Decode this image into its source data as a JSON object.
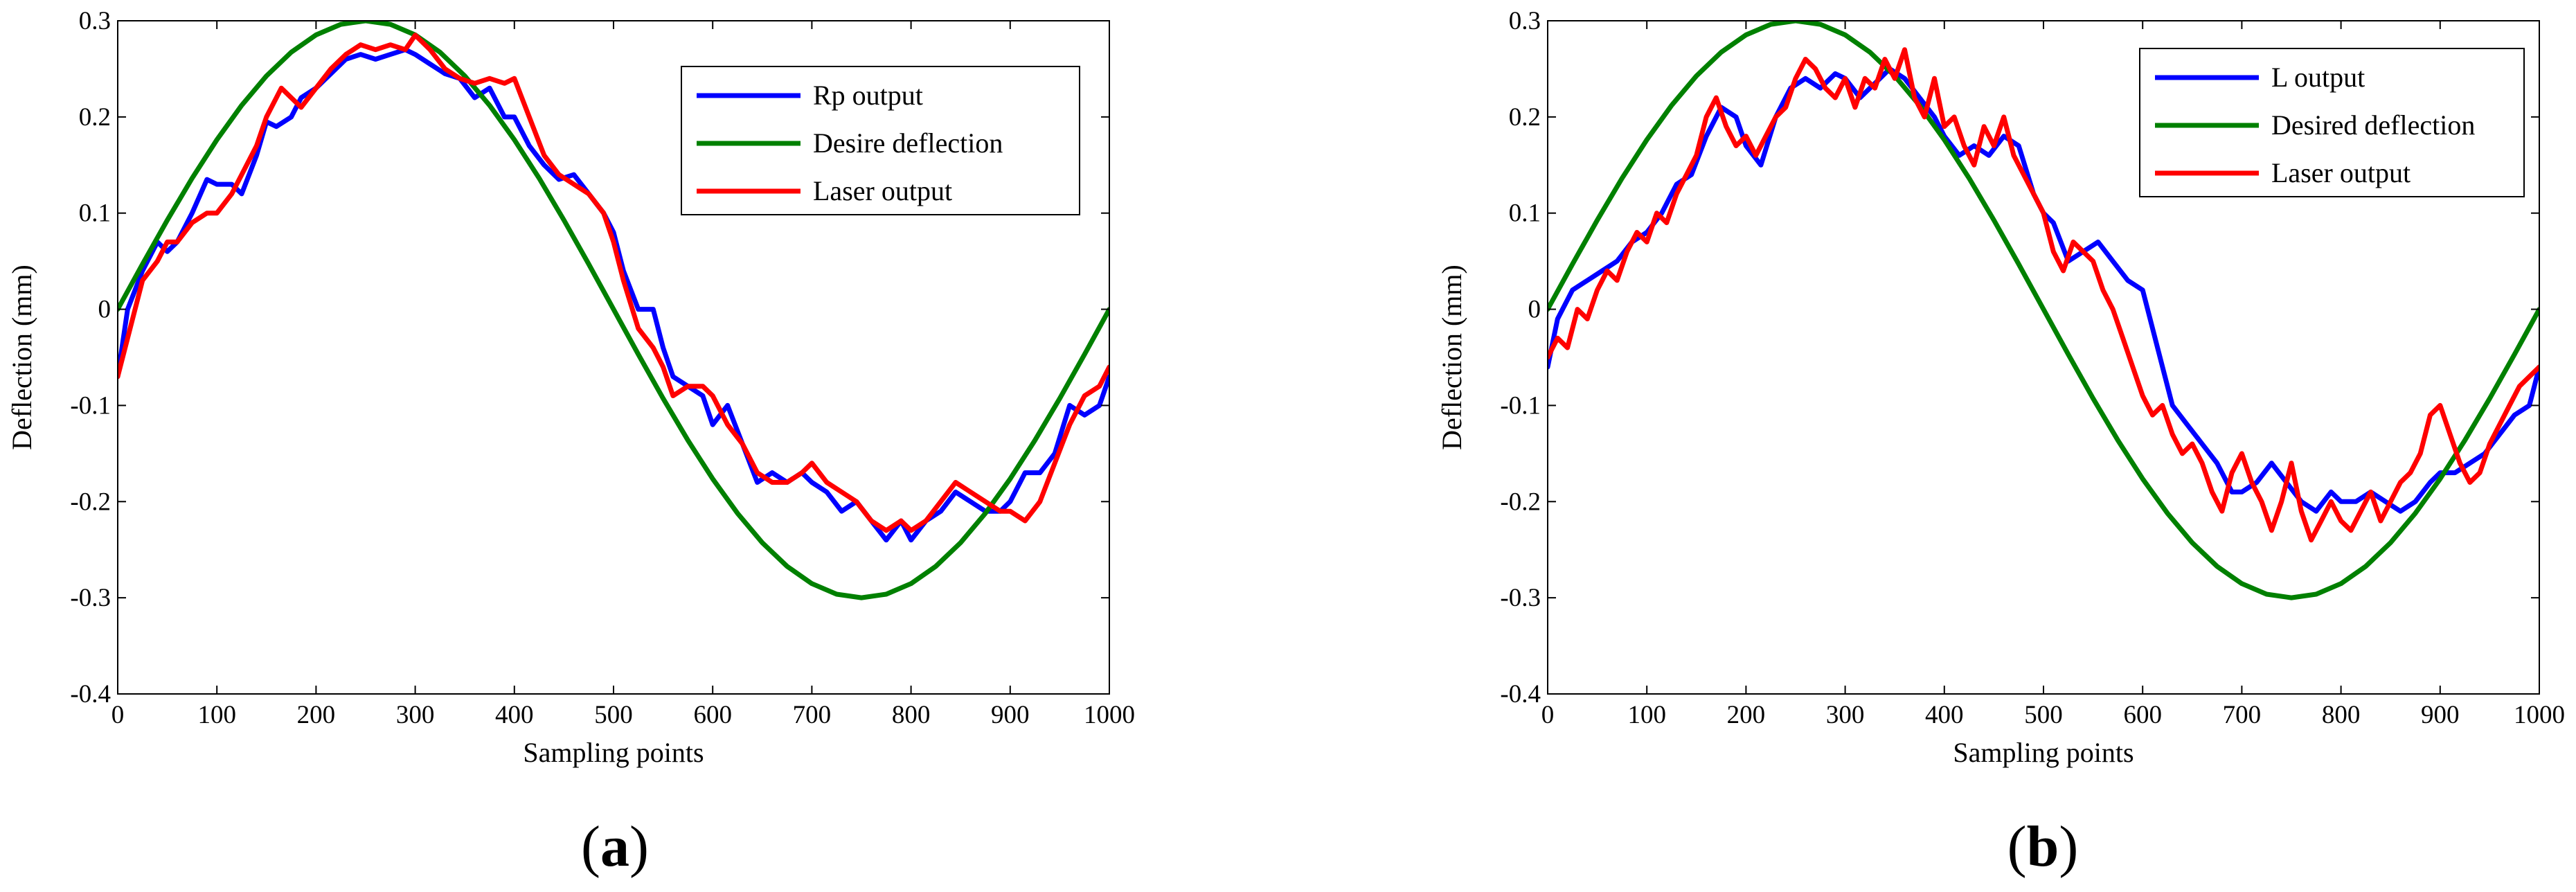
{
  "chart_data": [
    {
      "id": "a",
      "type": "line",
      "caption": {
        "open": "(",
        "letter": "a",
        "close": ")"
      },
      "title": "",
      "xlabel": "Sampling points",
      "ylabel": "Deflection (mm)",
      "xlim": [
        0,
        1000
      ],
      "ylim": [
        -0.4,
        0.3
      ],
      "xticks": [
        0,
        100,
        200,
        300,
        400,
        500,
        600,
        700,
        800,
        900,
        1000
      ],
      "yticks": [
        -0.4,
        -0.3,
        -0.2,
        -0.1,
        0,
        0.1,
        0.2,
        0.3
      ],
      "xtick_labels": [
        "0",
        "100",
        "200",
        "300",
        "400",
        "500",
        "600",
        "700",
        "800",
        "900",
        "1000"
      ],
      "ytick_labels": [
        "-0.4",
        "-0.3",
        "-0.2",
        "-0.1",
        "0",
        "0.1",
        "0.2",
        "0.3"
      ],
      "grid": false,
      "legend_position": "top-right",
      "series": [
        {
          "name": "Rp output",
          "color": "#0000ff",
          "x": [
            0,
            10,
            25,
            40,
            50,
            60,
            75,
            90,
            100,
            115,
            125,
            140,
            150,
            160,
            175,
            185,
            200,
            215,
            230,
            245,
            260,
            275,
            290,
            300,
            315,
            330,
            345,
            360,
            375,
            390,
            400,
            415,
            430,
            445,
            460,
            475,
            490,
            500,
            510,
            525,
            540,
            550,
            560,
            575,
            590,
            600,
            615,
            630,
            645,
            660,
            675,
            690,
            700,
            715,
            730,
            745,
            760,
            775,
            790,
            800,
            815,
            830,
            845,
            860,
            875,
            890,
            900,
            915,
            930,
            945,
            960,
            975,
            990,
            1000
          ],
          "values": [
            -0.07,
            0.0,
            0.04,
            0.07,
            0.06,
            0.07,
            0.1,
            0.135,
            0.13,
            0.13,
            0.12,
            0.16,
            0.195,
            0.19,
            0.2,
            0.22,
            0.23,
            0.245,
            0.26,
            0.265,
            0.26,
            0.265,
            0.27,
            0.265,
            0.255,
            0.245,
            0.24,
            0.22,
            0.23,
            0.2,
            0.2,
            0.17,
            0.15,
            0.135,
            0.14,
            0.12,
            0.1,
            0.08,
            0.04,
            0.0,
            0.0,
            -0.04,
            -0.07,
            -0.08,
            -0.09,
            -0.12,
            -0.1,
            -0.14,
            -0.18,
            -0.17,
            -0.18,
            -0.17,
            -0.18,
            -0.19,
            -0.21,
            -0.2,
            -0.22,
            -0.24,
            -0.22,
            -0.24,
            -0.22,
            -0.21,
            -0.19,
            -0.2,
            -0.21,
            -0.21,
            -0.2,
            -0.17,
            -0.17,
            -0.15,
            -0.1,
            -0.11,
            -0.1,
            -0.07
          ]
        },
        {
          "name": "Desire deflection",
          "color": "#008000",
          "function": "0.3*sin(2*pi*x/1000)",
          "x": [
            0,
            25,
            50,
            75,
            100,
            125,
            150,
            175,
            200,
            225,
            250,
            275,
            300,
            325,
            350,
            375,
            400,
            425,
            450,
            475,
            500,
            525,
            550,
            575,
            600,
            625,
            650,
            675,
            700,
            725,
            750,
            775,
            800,
            825,
            850,
            875,
            900,
            925,
            950,
            975,
            1000
          ],
          "values": [
            0.0,
            0.0469,
            0.0927,
            0.1362,
            0.1763,
            0.2121,
            0.2427,
            0.2673,
            0.2853,
            0.2963,
            0.3,
            0.2963,
            0.2853,
            0.2673,
            0.2427,
            0.2121,
            0.1763,
            0.1362,
            0.0927,
            0.0469,
            0.0,
            -0.0469,
            -0.0927,
            -0.1362,
            -0.1763,
            -0.2121,
            -0.2427,
            -0.2673,
            -0.2853,
            -0.2963,
            -0.3,
            -0.2963,
            -0.2853,
            -0.2673,
            -0.2427,
            -0.2121,
            -0.1763,
            -0.1362,
            -0.0927,
            -0.0469,
            0.0
          ]
        },
        {
          "name": "Laser output",
          "color": "#ff0000",
          "x": [
            0,
            10,
            25,
            40,
            50,
            60,
            75,
            90,
            100,
            115,
            125,
            140,
            150,
            165,
            175,
            185,
            200,
            215,
            230,
            245,
            260,
            275,
            290,
            300,
            315,
            330,
            345,
            360,
            375,
            390,
            400,
            415,
            430,
            445,
            460,
            475,
            490,
            500,
            510,
            525,
            540,
            550,
            560,
            575,
            590,
            600,
            615,
            630,
            645,
            660,
            675,
            690,
            700,
            715,
            730,
            745,
            760,
            775,
            790,
            800,
            815,
            830,
            845,
            860,
            875,
            890,
            900,
            915,
            930,
            945,
            960,
            975,
            990,
            1000
          ],
          "values": [
            -0.07,
            -0.03,
            0.03,
            0.05,
            0.07,
            0.07,
            0.09,
            0.1,
            0.1,
            0.12,
            0.14,
            0.17,
            0.2,
            0.23,
            0.22,
            0.21,
            0.23,
            0.25,
            0.265,
            0.275,
            0.27,
            0.275,
            0.27,
            0.285,
            0.27,
            0.25,
            0.24,
            0.235,
            0.24,
            0.235,
            0.24,
            0.2,
            0.16,
            0.14,
            0.13,
            0.12,
            0.1,
            0.07,
            0.03,
            -0.02,
            -0.04,
            -0.06,
            -0.09,
            -0.08,
            -0.08,
            -0.09,
            -0.12,
            -0.14,
            -0.17,
            -0.18,
            -0.18,
            -0.17,
            -0.16,
            -0.18,
            -0.19,
            -0.2,
            -0.22,
            -0.23,
            -0.22,
            -0.23,
            -0.22,
            -0.2,
            -0.18,
            -0.19,
            -0.2,
            -0.21,
            -0.21,
            -0.22,
            -0.2,
            -0.16,
            -0.12,
            -0.09,
            -0.08,
            -0.06
          ]
        }
      ]
    },
    {
      "id": "b",
      "type": "line",
      "caption": {
        "open": "(",
        "letter": "b",
        "close": ")"
      },
      "title": "",
      "xlabel": "Sampling points",
      "ylabel": "Deflection (mm)",
      "xlim": [
        0,
        1000
      ],
      "ylim": [
        -0.4,
        0.3
      ],
      "xticks": [
        0,
        100,
        200,
        300,
        400,
        500,
        600,
        700,
        800,
        900,
        1000
      ],
      "yticks": [
        -0.4,
        -0.3,
        -0.2,
        -0.1,
        0,
        0.1,
        0.2,
        0.3
      ],
      "xtick_labels": [
        "0",
        "100",
        "200",
        "300",
        "400",
        "500",
        "600",
        "700",
        "800",
        "900",
        "1000"
      ],
      "ytick_labels": [
        "-0.4",
        "-0.3",
        "-0.2",
        "-0.1",
        "0",
        "0.1",
        "0.2",
        "0.3"
      ],
      "grid": false,
      "legend_position": "top-right",
      "series": [
        {
          "name": "L output",
          "color": "#0000ff",
          "x": [
            0,
            10,
            25,
            40,
            55,
            70,
            85,
            100,
            115,
            130,
            145,
            160,
            175,
            190,
            200,
            215,
            230,
            245,
            260,
            275,
            290,
            300,
            315,
            330,
            345,
            360,
            375,
            390,
            400,
            415,
            430,
            445,
            460,
            475,
            490,
            500,
            510,
            525,
            540,
            555,
            570,
            585,
            600,
            615,
            630,
            645,
            660,
            675,
            690,
            700,
            715,
            730,
            745,
            760,
            775,
            790,
            800,
            815,
            830,
            845,
            860,
            875,
            890,
            900,
            915,
            930,
            945,
            960,
            975,
            990,
            1000
          ],
          "values": [
            -0.06,
            -0.01,
            0.02,
            0.03,
            0.04,
            0.05,
            0.07,
            0.08,
            0.1,
            0.13,
            0.14,
            0.18,
            0.21,
            0.2,
            0.17,
            0.15,
            0.2,
            0.23,
            0.24,
            0.23,
            0.245,
            0.24,
            0.22,
            0.235,
            0.25,
            0.24,
            0.22,
            0.2,
            0.18,
            0.16,
            0.17,
            0.16,
            0.18,
            0.17,
            0.12,
            0.1,
            0.09,
            0.05,
            0.06,
            0.07,
            0.05,
            0.03,
            0.02,
            -0.04,
            -0.1,
            -0.12,
            -0.14,
            -0.16,
            -0.19,
            -0.19,
            -0.18,
            -0.16,
            -0.18,
            -0.2,
            -0.21,
            -0.19,
            -0.2,
            -0.2,
            -0.19,
            -0.2,
            -0.21,
            -0.2,
            -0.18,
            -0.17,
            -0.17,
            -0.16,
            -0.15,
            -0.13,
            -0.11,
            -0.1,
            -0.06
          ]
        },
        {
          "name": "Desired deflection",
          "color": "#008000",
          "function": "0.3*sin(2*pi*x/1000)",
          "x": [
            0,
            25,
            50,
            75,
            100,
            125,
            150,
            175,
            200,
            225,
            250,
            275,
            300,
            325,
            350,
            375,
            400,
            425,
            450,
            475,
            500,
            525,
            550,
            575,
            600,
            625,
            650,
            675,
            700,
            725,
            750,
            775,
            800,
            825,
            850,
            875,
            900,
            925,
            950,
            975,
            1000
          ],
          "values": [
            0.0,
            0.0469,
            0.0927,
            0.1362,
            0.1763,
            0.2121,
            0.2427,
            0.2673,
            0.2853,
            0.2963,
            0.3,
            0.2963,
            0.2853,
            0.2673,
            0.2427,
            0.2121,
            0.1763,
            0.1362,
            0.0927,
            0.0469,
            0.0,
            -0.0469,
            -0.0927,
            -0.1362,
            -0.1763,
            -0.2121,
            -0.2427,
            -0.2673,
            -0.2853,
            -0.2963,
            -0.3,
            -0.2963,
            -0.2853,
            -0.2673,
            -0.2427,
            -0.2121,
            -0.1763,
            -0.1362,
            -0.0927,
            -0.0469,
            0.0
          ]
        },
        {
          "name": "Laser output",
          "color": "#ff0000",
          "x": [
            0,
            10,
            20,
            30,
            40,
            50,
            60,
            70,
            80,
            90,
            100,
            110,
            120,
            130,
            140,
            150,
            160,
            170,
            180,
            190,
            200,
            210,
            220,
            230,
            240,
            250,
            260,
            270,
            280,
            290,
            300,
            310,
            320,
            330,
            340,
            350,
            360,
            370,
            380,
            390,
            400,
            410,
            420,
            430,
            440,
            450,
            460,
            470,
            480,
            490,
            500,
            510,
            520,
            530,
            540,
            550,
            560,
            570,
            580,
            590,
            600,
            610,
            620,
            630,
            640,
            650,
            660,
            670,
            680,
            690,
            700,
            710,
            720,
            730,
            740,
            750,
            760,
            770,
            780,
            790,
            800,
            810,
            820,
            830,
            840,
            850,
            860,
            870,
            880,
            890,
            900,
            910,
            920,
            930,
            940,
            950,
            960,
            970,
            980,
            990,
            1000
          ],
          "values": [
            -0.05,
            -0.03,
            -0.04,
            0.0,
            -0.01,
            0.02,
            0.04,
            0.03,
            0.06,
            0.08,
            0.07,
            0.1,
            0.09,
            0.12,
            0.14,
            0.16,
            0.2,
            0.22,
            0.19,
            0.17,
            0.18,
            0.16,
            0.18,
            0.2,
            0.21,
            0.24,
            0.26,
            0.25,
            0.23,
            0.22,
            0.24,
            0.21,
            0.24,
            0.23,
            0.26,
            0.24,
            0.27,
            0.22,
            0.2,
            0.24,
            0.19,
            0.2,
            0.17,
            0.15,
            0.19,
            0.17,
            0.2,
            0.16,
            0.14,
            0.12,
            0.1,
            0.06,
            0.04,
            0.07,
            0.06,
            0.05,
            0.02,
            0.0,
            -0.03,
            -0.06,
            -0.09,
            -0.11,
            -0.1,
            -0.13,
            -0.15,
            -0.14,
            -0.16,
            -0.19,
            -0.21,
            -0.17,
            -0.15,
            -0.18,
            -0.2,
            -0.23,
            -0.2,
            -0.16,
            -0.21,
            -0.24,
            -0.22,
            -0.2,
            -0.22,
            -0.23,
            -0.21,
            -0.19,
            -0.22,
            -0.2,
            -0.18,
            -0.17,
            -0.15,
            -0.11,
            -0.1,
            -0.13,
            -0.16,
            -0.18,
            -0.17,
            -0.14,
            -0.12,
            -0.1,
            -0.08,
            -0.07,
            -0.06
          ]
        }
      ]
    }
  ]
}
